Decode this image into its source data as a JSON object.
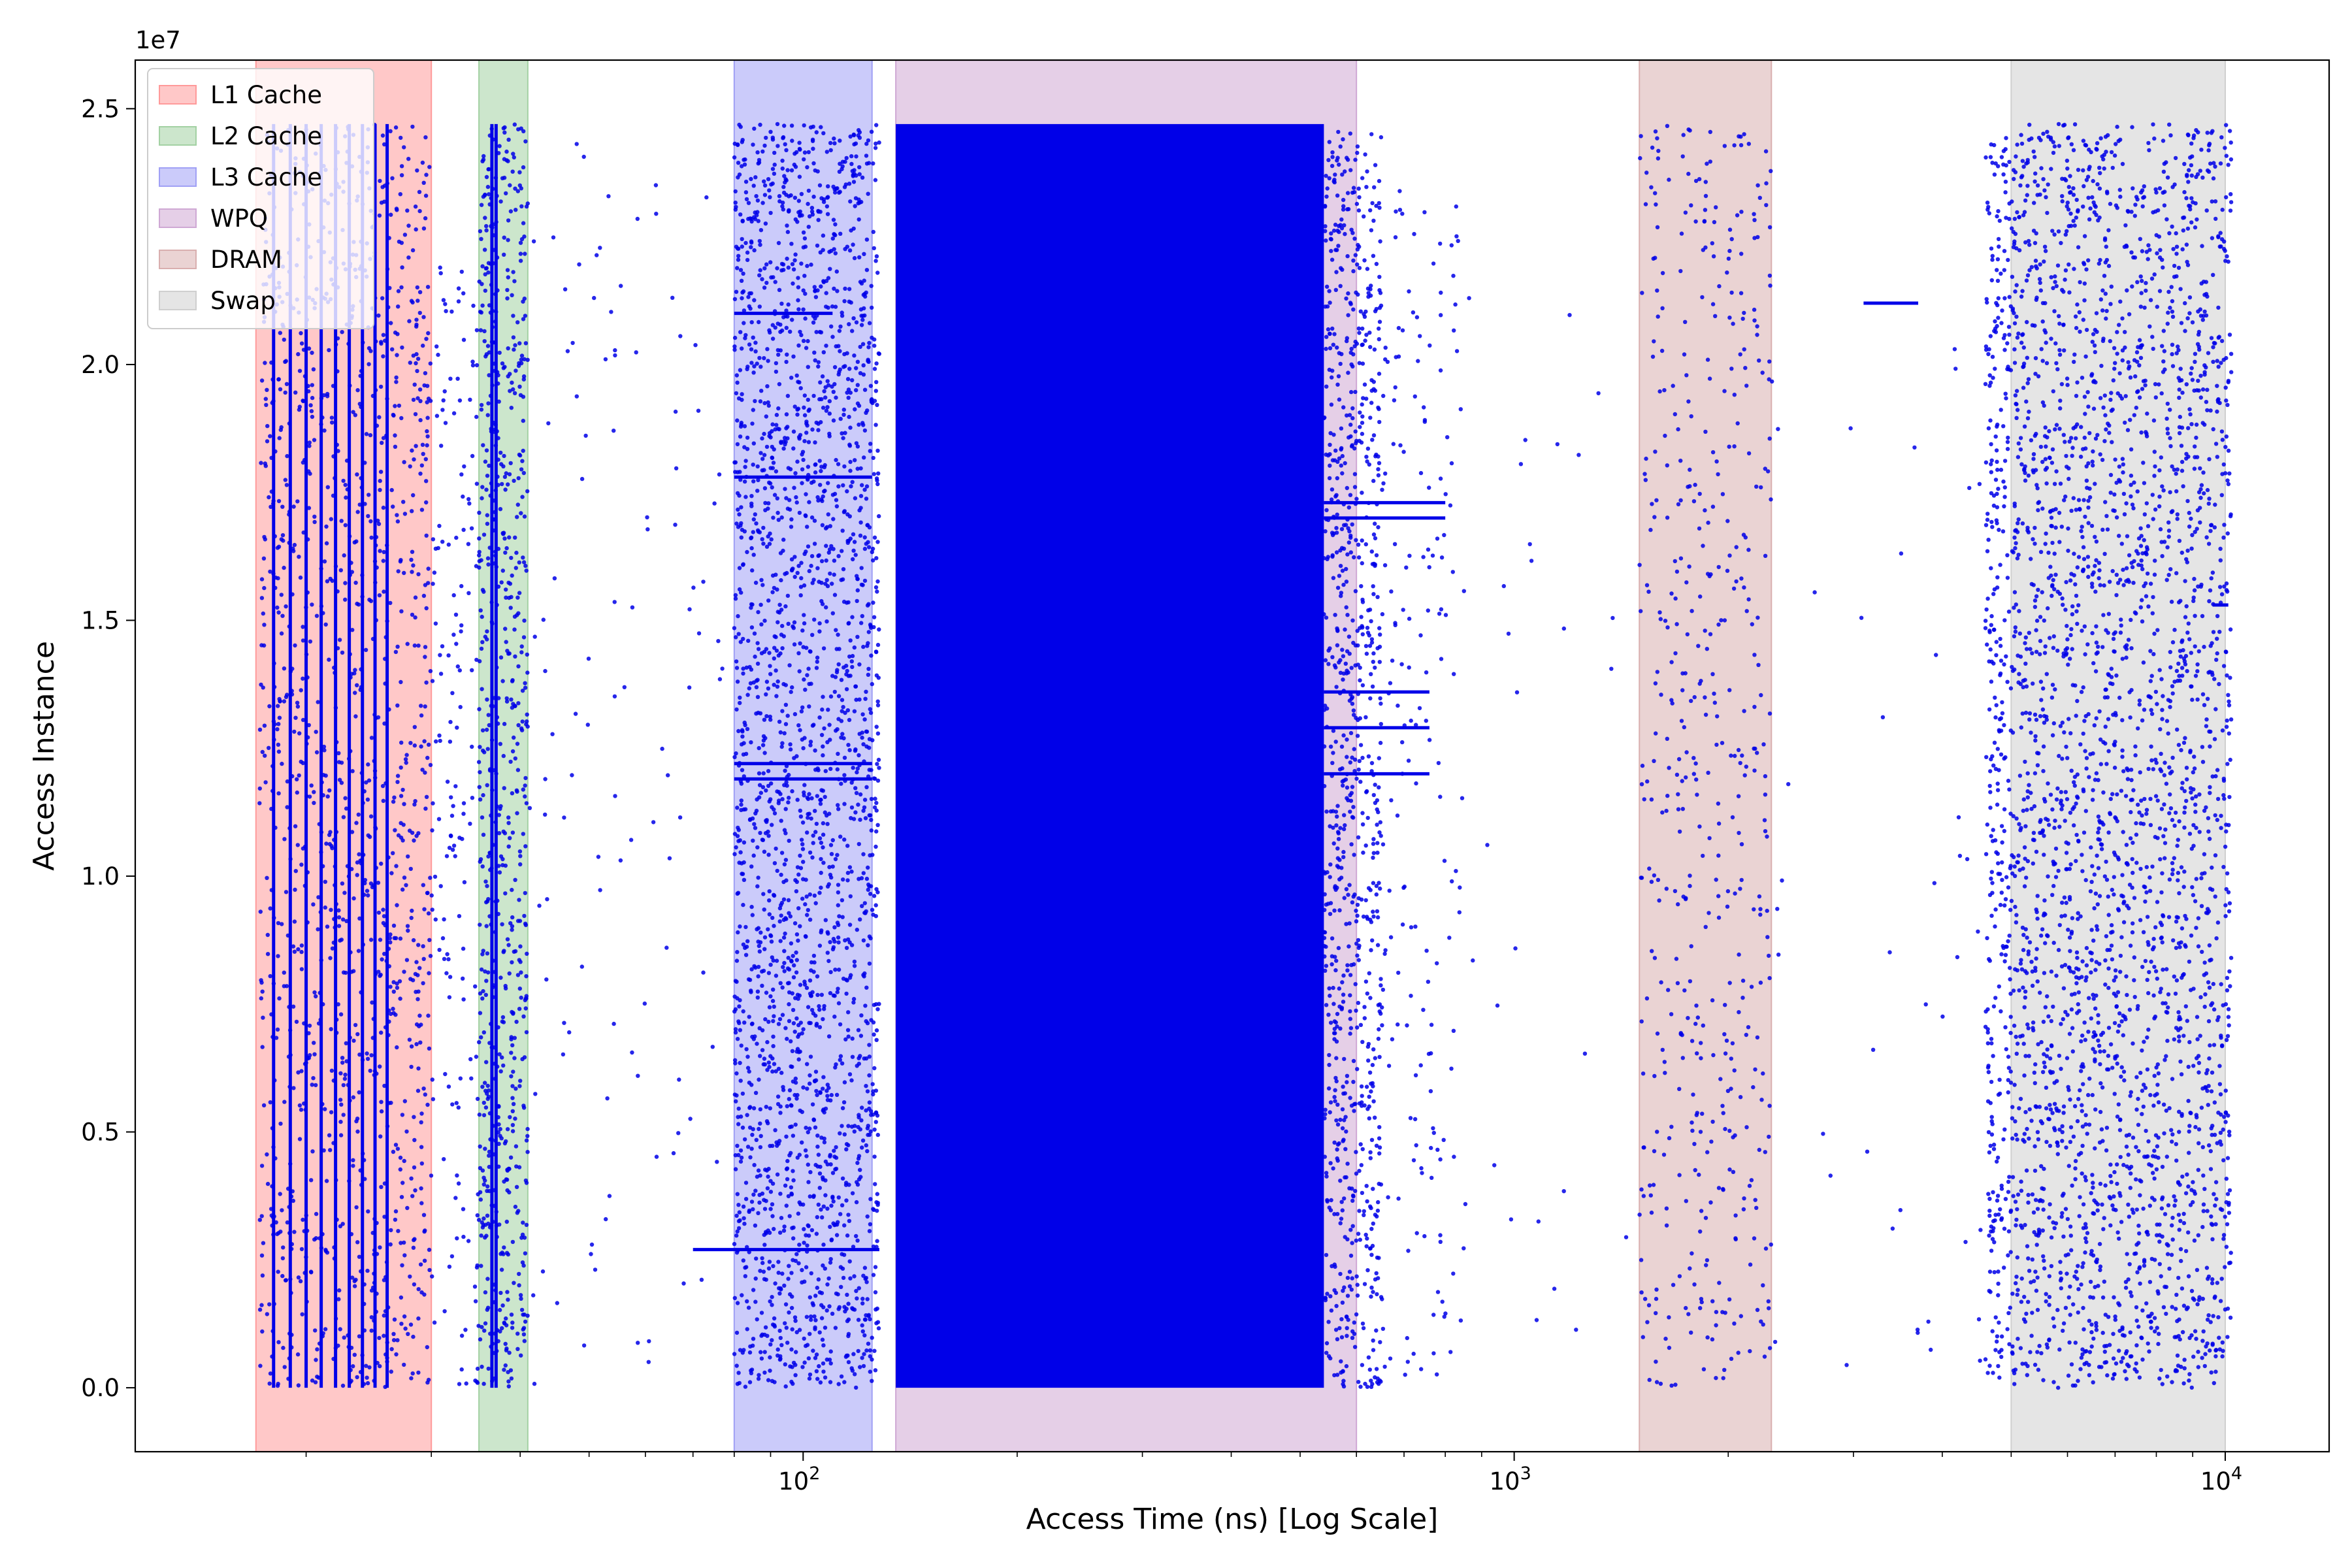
{
  "chart_data": {
    "type": "scatter",
    "xlabel": "Access Time (ns) [Log Scale]",
    "ylabel": "Access Instance",
    "x_scale": "log",
    "xlim": [
      11.5,
      14000
    ],
    "ylim": [
      -1250000,
      25950000
    ],
    "y_offset_label": "1e7",
    "x_ticks": [
      {
        "value": 100,
        "base": "10",
        "exp": "2"
      },
      {
        "value": 1000,
        "base": "10",
        "exp": "3"
      },
      {
        "value": 10000,
        "base": "10",
        "exp": "4"
      }
    ],
    "y_ticks": [
      {
        "value": 0,
        "label": "0.0"
      },
      {
        "value": 5000000,
        "label": "0.5"
      },
      {
        "value": 10000000,
        "label": "1.0"
      },
      {
        "value": 15000000,
        "label": "1.5"
      },
      {
        "value": 20000000,
        "label": "2.0"
      },
      {
        "value": 25000000,
        "label": "2.5"
      }
    ],
    "grid": false,
    "legend_position": "top-left",
    "point_color": "#0000e8",
    "regions": [
      {
        "name": "L1 Cache",
        "x_start": 17,
        "x_end": 30,
        "color": "#ff9a9a"
      },
      {
        "name": "L2 Cache",
        "x_start": 35,
        "x_end": 41,
        "color": "#a3d1a3"
      },
      {
        "name": "L3 Cache",
        "x_start": 80,
        "x_end": 125,
        "color": "#a0a0f5"
      },
      {
        "name": "WPQ",
        "x_start": 135,
        "x_end": 600,
        "color": "#cfa8d4"
      },
      {
        "name": "DRAM",
        "x_start": 1500,
        "x_end": 2300,
        "color": "#d9afaf"
      },
      {
        "name": "Swap",
        "x_start": 5000,
        "x_end": 10000,
        "color": "#cfcfcf"
      }
    ],
    "series": [
      {
        "name": "",
        "dense_band": {
          "x_start": 135,
          "x_end": 540,
          "y_min": 0,
          "y_max": 24700000
        },
        "vertical_lines": [
          {
            "x": 18.0,
            "y_min": 0,
            "y_max": 24700000
          },
          {
            "x": 19.0,
            "y_min": 0,
            "y_max": 24700000
          },
          {
            "x": 20.0,
            "y_min": 0,
            "y_max": 24700000
          },
          {
            "x": 21.0,
            "y_min": 0,
            "y_max": 24700000
          },
          {
            "x": 22.0,
            "y_min": 0,
            "y_max": 24700000
          },
          {
            "x": 23.0,
            "y_min": 0,
            "y_max": 24700000
          },
          {
            "x": 24.0,
            "y_min": 0,
            "y_max": 24700000
          },
          {
            "x": 25.0,
            "y_min": 0,
            "y_max": 24700000
          },
          {
            "x": 26.0,
            "y_min": 0,
            "y_max": 24700000
          },
          {
            "x": 36.5,
            "y_min": 0,
            "y_max": 24700000
          },
          {
            "x": 37.0,
            "y_min": 0,
            "y_max": 24700000
          }
        ],
        "clusters": [
          {
            "x_min": 17.2,
            "x_max": 30,
            "y_min": 0,
            "y_max": 24700000,
            "count": 1300
          },
          {
            "x_min": 30,
            "x_max": 35,
            "y_min": 0,
            "y_max": 22000000,
            "count": 160
          },
          {
            "x_min": 35,
            "x_max": 41,
            "y_min": 0,
            "y_max": 24700000,
            "count": 700
          },
          {
            "x_min": 41,
            "x_max": 78,
            "y_min": 0,
            "y_max": 24700000,
            "count": 110
          },
          {
            "x_min": 80,
            "x_max": 128,
            "y_min": 0,
            "y_max": 24700000,
            "count": 2400
          },
          {
            "x_min": 540,
            "x_max": 650,
            "y_min": 0,
            "y_max": 24700000,
            "count": 900
          },
          {
            "x_min": 650,
            "x_max": 850,
            "y_min": 0,
            "y_max": 24000000,
            "count": 180
          },
          {
            "x_min": 850,
            "x_max": 1450,
            "y_min": 0,
            "y_max": 22000000,
            "count": 30
          },
          {
            "x_min": 1500,
            "x_max": 2300,
            "y_min": 0,
            "y_max": 24700000,
            "count": 500
          },
          {
            "x_min": 2300,
            "x_max": 4800,
            "y_min": 0,
            "y_max": 22000000,
            "count": 45
          },
          {
            "x_min": 4600,
            "x_max": 10200,
            "y_min": 0,
            "y_max": 24700000,
            "count": 3200
          }
        ],
        "horizontal_streaks": [
          {
            "x_start": 70,
            "x_end": 128,
            "y": 2700000
          },
          {
            "x_start": 80,
            "x_end": 125,
            "y": 11900000
          },
          {
            "x_start": 80,
            "x_end": 125,
            "y": 12200000
          },
          {
            "x_start": 80,
            "x_end": 125,
            "y": 17800000
          },
          {
            "x_start": 80,
            "x_end": 110,
            "y": 21000000
          },
          {
            "x_start": 540,
            "x_end": 800,
            "y": 17300000
          },
          {
            "x_start": 540,
            "x_end": 800,
            "y": 17000000
          },
          {
            "x_start": 540,
            "x_end": 760,
            "y": 13600000
          },
          {
            "x_start": 540,
            "x_end": 760,
            "y": 12900000
          },
          {
            "x_start": 540,
            "x_end": 760,
            "y": 12000000
          },
          {
            "x_start": 3100,
            "x_end": 3700,
            "y": 21200000
          },
          {
            "x_start": 9600,
            "x_end": 10100,
            "y": 15300000
          }
        ]
      }
    ]
  }
}
